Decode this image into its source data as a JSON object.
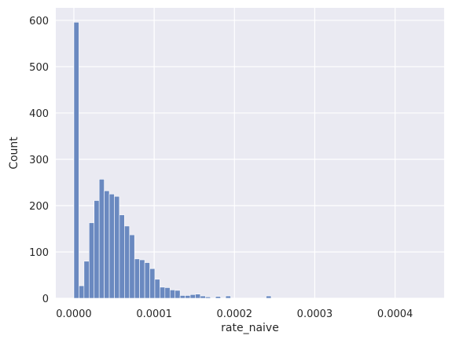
{
  "chart_data": {
    "type": "bar",
    "subtype": "histogram",
    "title": "",
    "xlabel": "rate_naive",
    "ylabel": "Count",
    "xlim": [
      -2.25e-05,
      0.0004611
    ],
    "ylim": [
      0,
      627
    ],
    "grid": true,
    "colors": {
      "background": "#EAEAF2",
      "grid": "#FFFFFF",
      "bar": "#6A89C0",
      "bar_edge": "#FFFFFF",
      "text": "#262626"
    },
    "x_ticks": [
      {
        "value": 0,
        "label": "0.0000"
      },
      {
        "value": 0.0001,
        "label": "0.0001"
      },
      {
        "value": 0.0002,
        "label": "0.0002"
      },
      {
        "value": 0.0003,
        "label": "0.0003"
      },
      {
        "value": 0.0004,
        "label": "0.0004"
      }
    ],
    "y_ticks": [
      {
        "value": 0,
        "label": "0"
      },
      {
        "value": 100,
        "label": "100"
      },
      {
        "value": 200,
        "label": "200"
      },
      {
        "value": 300,
        "label": "300"
      },
      {
        "value": 400,
        "label": "400"
      },
      {
        "value": 500,
        "label": "500"
      },
      {
        "value": 600,
        "label": "600"
      }
    ],
    "bin_start": 0,
    "bin_width": 6.3e-06,
    "counts": [
      596,
      27,
      80,
      163,
      211,
      257,
      232,
      225,
      220,
      180,
      156,
      137,
      85,
      83,
      77,
      64,
      41,
      24,
      23,
      18,
      17,
      6,
      6,
      8,
      9,
      5,
      3,
      0,
      4,
      0,
      5,
      0,
      0,
      0,
      0,
      0,
      0,
      0,
      5
    ]
  }
}
